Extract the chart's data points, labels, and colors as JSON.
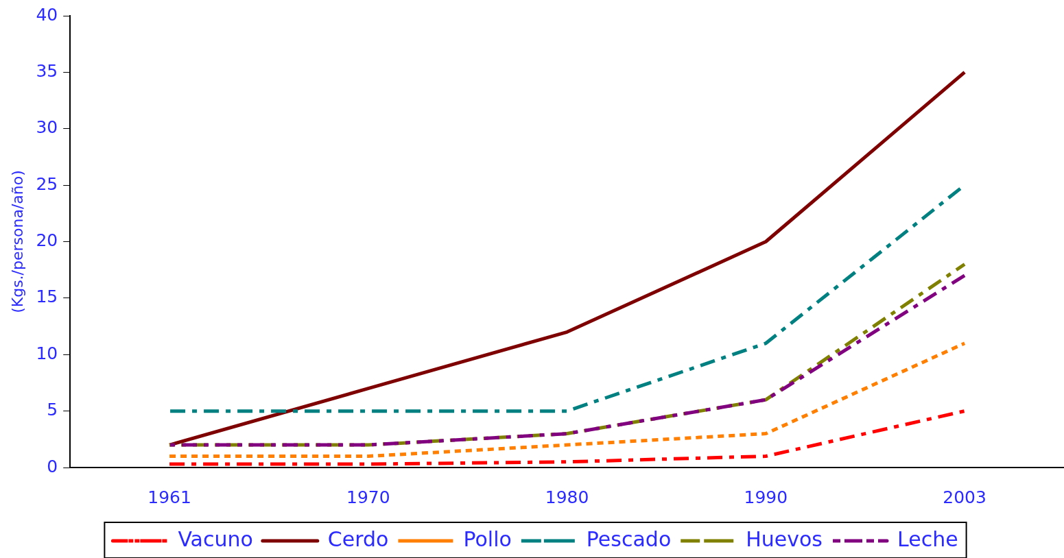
{
  "chart_data": {
    "type": "line",
    "ylabel": "(Kgs./persona/año)",
    "categories": [
      "1961",
      "1970",
      "1980",
      "1990",
      "2003"
    ],
    "series": [
      {
        "name": "Vacuno",
        "color": "#ff0000",
        "line_style": "dashed",
        "values": [
          0.3,
          0.3,
          0.5,
          1,
          5
        ]
      },
      {
        "name": "Cerdo",
        "color": "#7f0000",
        "line_style": "solid",
        "values": [
          2,
          7,
          12,
          20,
          35
        ]
      },
      {
        "name": "Pollo",
        "color": "#ff7f00",
        "line_style": "dotted",
        "values": [
          1,
          1,
          2,
          3,
          11
        ]
      },
      {
        "name": "Pescado",
        "color": "#008080",
        "line_style": "dashed",
        "values": [
          5,
          5,
          5,
          11,
          25
        ]
      },
      {
        "name": "Huevos",
        "color": "#808000",
        "line_style": "dashed",
        "values": [
          2,
          2,
          3,
          6,
          18
        ]
      },
      {
        "name": "Leche",
        "color": "#800080",
        "line_style": "dashed",
        "values": [
          2,
          2,
          3,
          6,
          17
        ]
      }
    ],
    "ylim": [
      0,
      40
    ],
    "yticks": [
      0,
      5,
      10,
      15,
      20,
      25,
      30,
      35,
      40
    ],
    "grid": false,
    "legend": "bottom",
    "marker": "none"
  }
}
